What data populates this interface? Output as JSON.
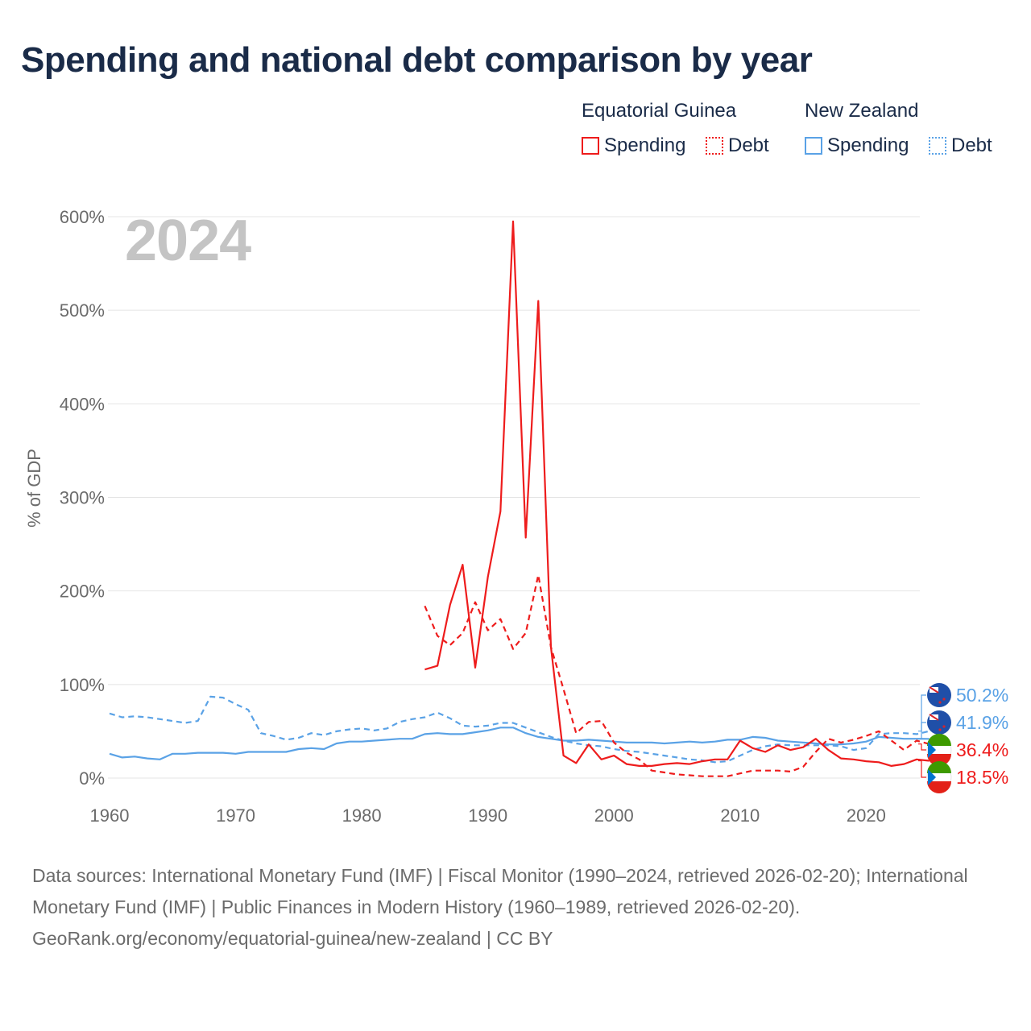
{
  "title": "Spending and national debt comparison by year",
  "year_label": "2024",
  "legend": {
    "groups": [
      {
        "name": "Equatorial Guinea",
        "color": "#ee1c1c",
        "spending_label": "Spending",
        "debt_label": "Debt"
      },
      {
        "name": "New Zealand",
        "color": "#5aa2e6",
        "spending_label": "Spending",
        "debt_label": "Debt"
      }
    ]
  },
  "end_labels": [
    "50.2%",
    "41.9%",
    "36.4%",
    "18.5%"
  ],
  "footer": {
    "sources": "Data sources: International Monetary Fund (IMF) | Fiscal Monitor (1990–2024, retrieved 2026-02-20); International Monetary Fund (IMF) | Public Finances in Modern History (1960–1989, retrieved 2026-02-20).",
    "credit": "GeoRank.org/economy/equatorial-guinea/new-zealand | CC BY"
  },
  "chart_data": {
    "type": "line",
    "title": "Spending and national debt comparison by year",
    "xlabel": "",
    "ylabel": "% of GDP",
    "xlim": [
      1960,
      2024
    ],
    "ylim": [
      0,
      600
    ],
    "x_ticks": [
      1960,
      1970,
      1980,
      1990,
      2000,
      2010,
      2020
    ],
    "y_ticks": [
      0,
      100,
      200,
      300,
      400,
      500,
      600
    ],
    "y_tick_labels": [
      "0%",
      "100%",
      "200%",
      "300%",
      "400%",
      "500%",
      "600%"
    ],
    "grid": true,
    "series": [
      {
        "name": "New Zealand Debt",
        "country": "New Zealand",
        "metric": "Debt",
        "color": "#5aa2e6",
        "dash": "dashed",
        "start": 1960,
        "end_value": "50.2%",
        "values": [
          69,
          65,
          66,
          65,
          63,
          61,
          59,
          61,
          87,
          86,
          79,
          73,
          48,
          45,
          41,
          43,
          48,
          46,
          50,
          52,
          53,
          51,
          53,
          60,
          63,
          65,
          70,
          64,
          56,
          55,
          56,
          59,
          59,
          54,
          49,
          44,
          40,
          37,
          35,
          34,
          31,
          29,
          28,
          26,
          24,
          22,
          20,
          19,
          17,
          18,
          24,
          30,
          34,
          36,
          35,
          35,
          35,
          35,
          34,
          30,
          32,
          47,
          48,
          48,
          47,
          50.2
        ]
      },
      {
        "name": "New Zealand Spending",
        "country": "New Zealand",
        "metric": "Spending",
        "color": "#5aa2e6",
        "dash": "solid",
        "start": 1960,
        "end_value": "41.9%",
        "values": [
          26,
          22,
          23,
          21,
          20,
          26,
          26,
          27,
          27,
          27,
          26,
          28,
          28,
          28,
          28,
          31,
          32,
          31,
          37,
          39,
          39,
          40,
          41,
          42,
          42,
          47,
          48,
          47,
          47,
          49,
          51,
          54,
          54,
          48,
          44,
          42,
          40,
          40,
          41,
          40,
          39,
          38,
          38,
          38,
          37,
          38,
          39,
          38,
          39,
          41,
          41,
          44,
          43,
          40,
          39,
          38,
          37,
          36,
          36,
          37,
          39,
          44,
          43,
          42,
          42,
          41.9
        ]
      },
      {
        "name": "Equatorial Guinea Spending",
        "country": "Equatorial Guinea",
        "metric": "Spending",
        "color": "#ee1c1c",
        "dash": "solid",
        "start": 1985,
        "end_value": "18.5%",
        "values": [
          116,
          120,
          185,
          228,
          118,
          215,
          285,
          595,
          257,
          510,
          140,
          24,
          16,
          36,
          20,
          24,
          15,
          13,
          13,
          15,
          16,
          15,
          18,
          20,
          20,
          40,
          32,
          28,
          35,
          30,
          33,
          42,
          30,
          21,
          20,
          18,
          17,
          13,
          15,
          20,
          18.5
        ]
      },
      {
        "name": "Equatorial Guinea Debt",
        "country": "Equatorial Guinea",
        "metric": "Debt",
        "color": "#ee1c1c",
        "dash": "dashed",
        "start": 1985,
        "end_value": "36.4%",
        "values": [
          184,
          152,
          142,
          155,
          188,
          158,
          170,
          138,
          155,
          217,
          140,
          95,
          48,
          60,
          61,
          38,
          27,
          20,
          8,
          6,
          4,
          3,
          2,
          2,
          2,
          5,
          8,
          8,
          8,
          7,
          12,
          28,
          42,
          38,
          41,
          45,
          50,
          40,
          30,
          40,
          36.4
        ]
      }
    ]
  }
}
